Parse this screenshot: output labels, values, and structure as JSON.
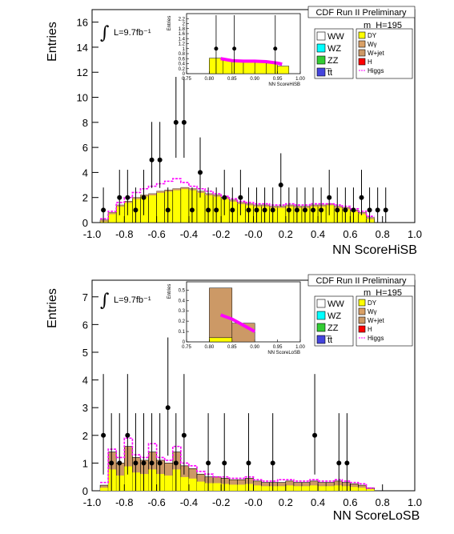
{
  "colors": {
    "dy": "#ffff00",
    "ww": "#ffffff",
    "wz": "#00ffff",
    "zz": "#33cc33",
    "tt": "#4444dd",
    "wgamma": "#d9a066",
    "wjet": "#cc9966",
    "h": "#ff0000",
    "higgs": "#ff00ff",
    "data": "#000000"
  },
  "chart_data": [
    {
      "type": "bar",
      "xlabel": "NN ScoreHiSB",
      "ylabel": "Entries",
      "header": "CDF Run II Preliminary",
      "lumi": "L=9.7fb⁻¹",
      "mass": "m_H=195",
      "xlim": [
        -1.0,
        1.0
      ],
      "ylim": [
        0,
        17
      ],
      "xticks": [
        "-1.0",
        "-0.8",
        "-0.6",
        "-0.4",
        "-0.2",
        "-0.0",
        "0.2",
        "0.4",
        "0.6",
        "0.8",
        "1.0"
      ],
      "yticks": [
        "0",
        "2",
        "4",
        "6",
        "8",
        "10",
        "12",
        "14",
        "16"
      ],
      "bin_edges_start": -0.95,
      "bin_width": 0.05,
      "background": [
        0.2,
        0.8,
        1.4,
        1.7,
        2.0,
        2.2,
        2.3,
        2.5,
        2.6,
        2.7,
        2.8,
        2.7,
        2.5,
        2.3,
        2.2,
        2.0,
        1.8,
        1.6,
        1.5,
        1.4,
        1.4,
        1.3,
        1.3,
        1.4,
        1.3,
        1.3,
        1.4,
        1.4,
        1.5,
        1.3,
        1.2,
        1.0,
        0.8,
        0.4
      ],
      "signal_envelope": [
        0.3,
        0.9,
        1.6,
        2.0,
        2.4,
        2.7,
        2.9,
        3.1,
        3.3,
        3.5,
        3.2,
        2.9,
        2.7,
        2.5,
        2.3,
        2.1,
        1.9,
        1.7,
        1.6,
        1.5,
        1.5,
        1.4,
        1.4,
        1.5,
        1.4,
        1.4,
        1.5,
        1.5,
        1.5,
        1.4,
        1.3,
        1.1,
        0.9,
        0.5
      ],
      "data_points": {
        "x": [
          -0.93,
          -0.83,
          -0.78,
          -0.73,
          -0.68,
          -0.63,
          -0.58,
          -0.53,
          -0.48,
          -0.43,
          -0.38,
          -0.33,
          -0.28,
          -0.23,
          -0.18,
          -0.13,
          -0.08,
          -0.03,
          0.02,
          0.07,
          0.12,
          0.17,
          0.22,
          0.27,
          0.32,
          0.37,
          0.42,
          0.47,
          0.52,
          0.57,
          0.62,
          0.67,
          0.72,
          0.77,
          0.82
        ],
        "y": [
          1,
          2,
          2,
          1,
          2,
          5,
          5,
          1,
          8,
          8,
          1,
          4,
          1,
          1,
          2,
          1,
          2,
          1,
          1,
          1,
          1,
          3,
          1,
          1,
          1,
          1,
          1,
          2,
          1,
          1,
          1,
          2,
          1,
          1,
          1
        ]
      },
      "legend": [
        {
          "label": "WW",
          "key": "ww"
        },
        {
          "label": "WZ",
          "key": "wz"
        },
        {
          "label": "ZZ",
          "key": "zz"
        },
        {
          "label": "t̅t",
          "key": "tt"
        },
        {
          "label": "DY",
          "key": "dy"
        },
        {
          "label": "Wγ",
          "key": "wgamma"
        },
        {
          "label": "W+jet",
          "key": "wjet"
        },
        {
          "label": "H",
          "key": "h"
        },
        {
          "label": "Higgs",
          "key": "higgs"
        }
      ],
      "inset": {
        "xlabel": "NN ScoreHiSB",
        "ylabel": "Entries",
        "xlim": [
          0.75,
          1.0
        ],
        "ylim": [
          0,
          2.4
        ],
        "xticks": [
          "0.75",
          "0.80",
          "0.85",
          "0.90",
          "0.95",
          "1.00"
        ],
        "yticks": [
          "0",
          "0.2",
          "0.4",
          "0.6",
          "0.8",
          "1",
          "1.2",
          "1.4",
          "1.6",
          "1.8",
          "2",
          "2.2"
        ],
        "background": [
          {
            "x0": 0.8,
            "x1": 0.825,
            "y": 0.55
          },
          {
            "x0": 0.825,
            "x1": 0.85,
            "y": 0.52
          },
          {
            "x0": 0.85,
            "x1": 0.875,
            "y": 0.48
          },
          {
            "x0": 0.875,
            "x1": 0.9,
            "y": 0.48
          },
          {
            "x0": 0.9,
            "x1": 0.925,
            "y": 0.45
          },
          {
            "x0": 0.925,
            "x1": 0.95,
            "y": 0.42
          },
          {
            "x0": 0.95,
            "x1": 0.975,
            "y": 0.3
          }
        ],
        "dy_bin": {
          "x0": 0.8,
          "x1": 0.83,
          "y": 0.62
        },
        "signal": {
          "x": [
            0.825,
            0.85,
            0.875,
            0.9,
            0.925,
            0.95,
            0.96
          ],
          "y": [
            0.6,
            0.52,
            0.5,
            0.5,
            0.48,
            0.42,
            0.38
          ]
        },
        "data_points": {
          "x": [
            0.815,
            0.855,
            0.945
          ],
          "y": [
            1.0,
            1.0,
            1.0
          ]
        }
      }
    },
    {
      "type": "bar",
      "xlabel": "NN ScoreLoSB",
      "ylabel": "Entries",
      "header": "CDF Run II Preliminary",
      "lumi": "L=9.7fb⁻¹",
      "mass": "m_H=195",
      "xlim": [
        -1.0,
        1.0
      ],
      "ylim": [
        0,
        7.6
      ],
      "xticks": [
        "-1.0",
        "-0.8",
        "-0.6",
        "-0.4",
        "-0.2",
        "-0.0",
        "0.2",
        "0.4",
        "0.6",
        "0.8",
        "1.0"
      ],
      "yticks": [
        "0",
        "1",
        "2",
        "3",
        "4",
        "5",
        "6",
        "7"
      ],
      "bin_edges_start": -0.95,
      "bin_width": 0.05,
      "background": [
        0.2,
        1.4,
        1.0,
        1.6,
        1.2,
        1.1,
        1.4,
        1.1,
        1.0,
        1.4,
        0.9,
        0.8,
        0.6,
        0.5,
        0.5,
        0.45,
        0.4,
        0.4,
        0.45,
        0.35,
        0.3,
        0.3,
        0.3,
        0.35,
        0.3,
        0.3,
        0.35,
        0.3,
        0.3,
        0.35,
        0.3,
        0.25,
        0.2,
        0.1
      ],
      "signal_envelope": [
        0.3,
        1.5,
        1.2,
        1.9,
        1.3,
        1.2,
        1.7,
        1.2,
        1.1,
        1.6,
        1.0,
        0.9,
        0.7,
        0.6,
        0.5,
        0.5,
        0.45,
        0.45,
        0.5,
        0.4,
        0.35,
        0.35,
        0.4,
        0.4,
        0.35,
        0.35,
        0.4,
        0.35,
        0.35,
        0.4,
        0.35,
        0.3,
        0.25,
        0.1
      ],
      "data_points": {
        "x": [
          -0.93,
          -0.88,
          -0.83,
          -0.78,
          -0.73,
          -0.68,
          -0.63,
          -0.58,
          -0.53,
          -0.48,
          -0.43,
          -0.28,
          -0.18,
          -0.03,
          0.12,
          0.38,
          0.53,
          0.58
        ],
        "y": [
          2,
          1,
          1,
          2,
          1,
          1,
          1,
          1,
          3,
          1,
          2,
          1,
          1,
          1,
          1,
          2,
          1,
          1
        ]
      },
      "legend": [
        {
          "label": "WW",
          "key": "ww"
        },
        {
          "label": "WZ",
          "key": "wz"
        },
        {
          "label": "ZZ",
          "key": "zz"
        },
        {
          "label": "t̅t",
          "key": "tt"
        },
        {
          "label": "DY",
          "key": "dy"
        },
        {
          "label": "Wγ",
          "key": "wgamma"
        },
        {
          "label": "W+jet",
          "key": "wjet"
        },
        {
          "label": "H",
          "key": "h"
        },
        {
          "label": "Higgs",
          "key": "higgs"
        }
      ],
      "inset": {
        "xlabel": "NN ScoreLoSB",
        "ylabel": "Entries",
        "xlim": [
          0.75,
          1.0
        ],
        "ylim": [
          0,
          0.58
        ],
        "xticks": [
          "0.75",
          "0.80",
          "0.85",
          "0.90",
          "0.95",
          "1.00"
        ],
        "yticks": [
          "0",
          "0.1",
          "0.2",
          "0.3",
          "0.4",
          "0.5"
        ],
        "background": [
          {
            "x0": 0.8,
            "x1": 0.85,
            "y": 0.52
          },
          {
            "x0": 0.85,
            "x1": 0.9,
            "y": 0.18
          }
        ],
        "dy_bin": {
          "x0": 0.8,
          "x1": 0.85,
          "y": 0.04
        },
        "signal": {
          "x": [
            0.825,
            0.85,
            0.875,
            0.9
          ],
          "y": [
            0.26,
            0.22,
            0.16,
            0.1
          ]
        },
        "data_points": {
          "x": [],
          "y": []
        }
      }
    }
  ]
}
